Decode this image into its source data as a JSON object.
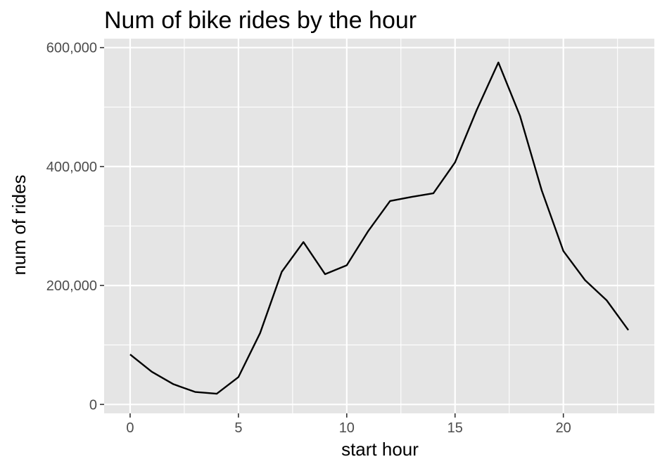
{
  "chart_data": {
    "type": "line",
    "title": "Num of bike rides by the hour",
    "xlabel": "start hour",
    "ylabel": "num of rides",
    "xlim": [
      -1.2,
      24.2
    ],
    "ylim": [
      -15000,
      615000
    ],
    "x_ticks": [
      0,
      5,
      10,
      15,
      20
    ],
    "x_tick_labels": [
      "0",
      "5",
      "10",
      "15",
      "20"
    ],
    "x_minor_ticks": [
      2.5,
      7.5,
      12.5,
      17.5,
      22.5
    ],
    "y_ticks": [
      0,
      200000,
      400000,
      600000
    ],
    "y_tick_labels": [
      "0",
      "200,000",
      "400,000",
      "600,000"
    ],
    "y_minor_ticks": [
      100000,
      300000,
      500000
    ],
    "grid": true,
    "legend": "none",
    "series": [
      {
        "x": [
          0,
          1,
          2,
          3,
          4,
          5,
          6,
          7,
          8,
          9,
          10,
          11,
          12,
          13,
          14,
          15,
          16,
          17,
          18,
          19,
          20,
          21,
          22,
          23
        ],
        "values": [
          84000,
          55000,
          34000,
          21000,
          18000,
          46000,
          120000,
          223000,
          273000,
          219000,
          234000,
          292000,
          342000,
          349000,
          355000,
          407000,
          495000,
          575000,
          485000,
          360000,
          258000,
          209000,
          175000,
          125000
        ]
      }
    ],
    "colors": {
      "panel_background": "#e5e5e5",
      "grid": "#ffffff",
      "line": "#000000",
      "tick_text": "#4d4d4d"
    }
  }
}
